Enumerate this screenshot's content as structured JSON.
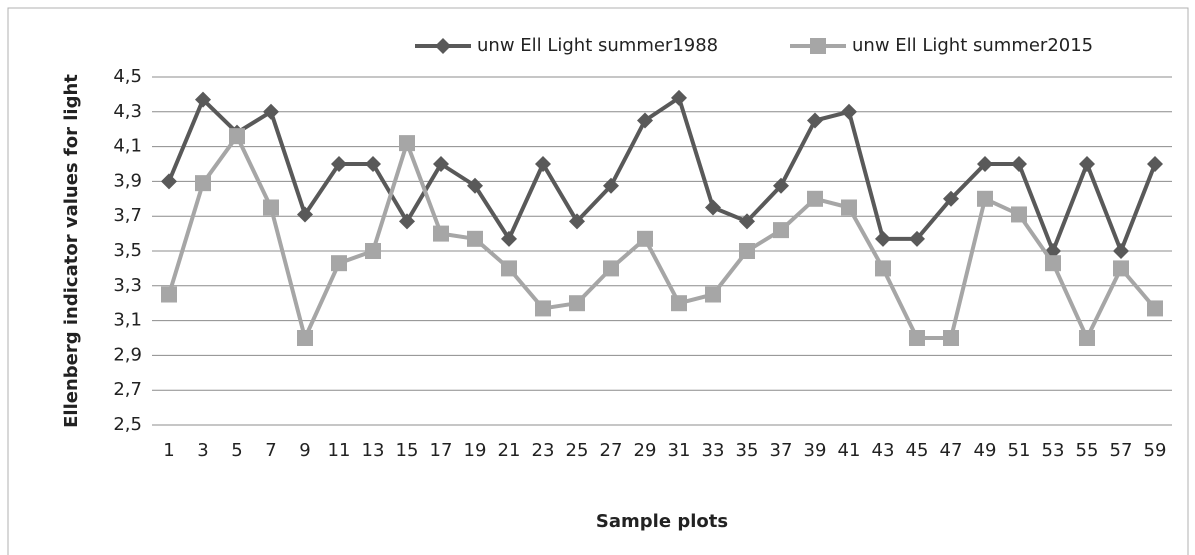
{
  "chart_data": {
    "type": "line",
    "x_label": "Sample plots",
    "y_label": "Ellenberg indicator values for light",
    "categories": [
      "1",
      "3",
      "5",
      "7",
      "9",
      "11",
      "13",
      "15",
      "17",
      "19",
      "21",
      "23",
      "25",
      "27",
      "29",
      "31",
      "33",
      "35",
      "37",
      "39",
      "41",
      "43",
      "45",
      "47",
      "49",
      "51",
      "53",
      "55",
      "57",
      "59"
    ],
    "series": [
      {
        "name": "unw Ell Light summer1988",
        "color": "#595959",
        "marker": "diamond",
        "values": [
          3.9,
          4.37,
          4.18,
          4.3,
          3.71,
          4.0,
          4.0,
          3.67,
          4.0,
          3.875,
          3.57,
          4.0,
          3.67,
          3.875,
          4.25,
          4.38,
          3.75,
          3.67,
          3.875,
          4.25,
          4.3,
          3.57,
          3.57,
          3.8,
          4.0,
          4.0,
          3.5,
          4.0,
          3.5,
          4.0
        ]
      },
      {
        "name": "unw Ell Light summer2015",
        "color": "#a6a6a6",
        "marker": "square",
        "values": [
          3.25,
          3.89,
          4.16,
          3.75,
          3.0,
          3.43,
          3.5,
          4.12,
          3.6,
          3.57,
          3.4,
          3.17,
          3.2,
          3.4,
          3.57,
          3.2,
          3.25,
          3.5,
          3.62,
          3.8,
          3.75,
          3.4,
          3.0,
          3.0,
          3.8,
          3.71,
          3.43,
          3.0,
          3.4,
          3.17
        ]
      }
    ],
    "ylim": [
      2.5,
      4.5
    ],
    "yticks": [
      {
        "value": 2.5,
        "label": "2,5"
      },
      {
        "value": 2.7,
        "label": "2,7"
      },
      {
        "value": 2.9,
        "label": "2,9"
      },
      {
        "value": 3.1,
        "label": "3,1"
      },
      {
        "value": 3.3,
        "label": "3,3"
      },
      {
        "value": 3.5,
        "label": "3,5"
      },
      {
        "value": 3.7,
        "label": "3,7"
      },
      {
        "value": 3.9,
        "label": "3,9"
      },
      {
        "value": 4.1,
        "label": "4,1"
      },
      {
        "value": 4.3,
        "label": "4,3"
      },
      {
        "value": 4.5,
        "label": "4,5"
      }
    ],
    "grid": true,
    "legend": "top"
  }
}
